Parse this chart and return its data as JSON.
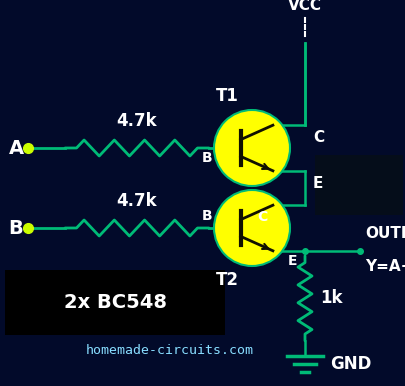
{
  "bg_color": "#020a2a",
  "wire_color": "#00bb77",
  "transistor_fill": "#ffff00",
  "transistor_edge": "#00bb77",
  "vcc_line_color": "#aaaaff",
  "text_color_white": "#ffffff",
  "text_color_cyan": "#88ddff",
  "label_A": "A",
  "label_B": "B",
  "label_4k7_top": "4.7k",
  "label_4k7_bot": "4.7k",
  "label_T1": "T1",
  "label_T2": "T2",
  "label_C_top": "C",
  "label_C_bot": "C",
  "label_B_top": "B",
  "label_B_bot": "B",
  "label_E_top": "E",
  "label_E_bot": "E",
  "label_VCC": "VCC",
  "label_OUTPUT": "OUTPUT",
  "label_equation": "Y=A+B",
  "label_1k": "1k",
  "label_GND": "GND",
  "label_BC548": "2x BC548",
  "label_website": "homemade-circuits.com",
  "figsize": [
    4.05,
    3.86
  ],
  "dpi": 100
}
